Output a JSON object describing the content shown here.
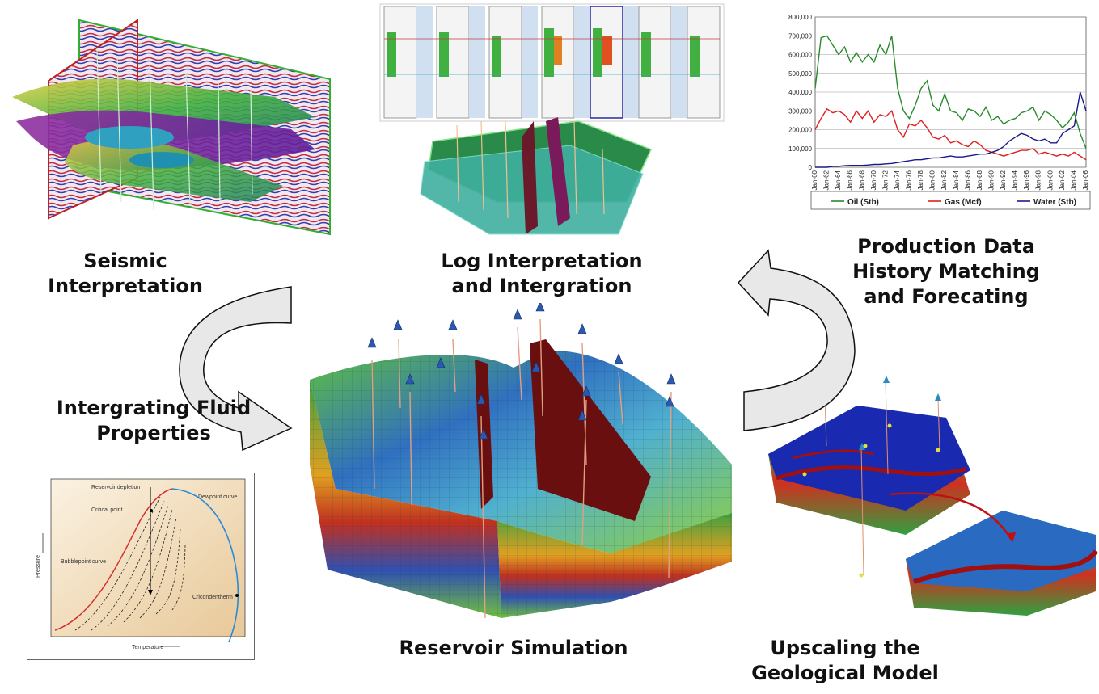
{
  "labels": {
    "seismic": [
      "Seismic",
      "Interpretation"
    ],
    "log": [
      "Log Interpretation",
      "and Intergration"
    ],
    "production": [
      "Production Data",
      "History Matching",
      "and Forecating"
    ],
    "fluid": [
      "Intergrating Fluid",
      "Properties"
    ],
    "reservoir": [
      "Reservoir Simulation"
    ],
    "upscaling": [
      "Upscaling the",
      "Geological Model"
    ]
  },
  "colors": {
    "oil": "#2a8a2a",
    "gas": "#e02020",
    "water": "#1a1a8a",
    "bubblepoint": "#d43030",
    "dewpoint": "#2a8ad4",
    "arrow_fill": "#e8e8e8"
  },
  "chart_data": {
    "type": "line",
    "title": "",
    "xlabel": "",
    "ylabel": "",
    "ylim": [
      0,
      800000
    ],
    "yticks": [
      "0",
      "100,000",
      "200,000",
      "300,000",
      "400,000",
      "500,000",
      "600,000",
      "700,000",
      "800,000"
    ],
    "xticks": [
      "Jan-60",
      "Jan-62",
      "Jan-64",
      "Jan-66",
      "Jan-68",
      "Jan-70",
      "Jan-72",
      "Jan-74",
      "Jan-76",
      "Jan-78",
      "Jan-80",
      "Jan-82",
      "Jan-84",
      "Jan-86",
      "Jan-88",
      "Jan-90",
      "Jan-92",
      "Jan-94",
      "Jan-96",
      "Jan-98",
      "Jan-00",
      "Jan-02",
      "Jan-04",
      "Jan-06"
    ],
    "x_years": [
      1960,
      1961,
      1962,
      1963,
      1964,
      1965,
      1966,
      1967,
      1968,
      1969,
      1970,
      1971,
      1972,
      1973,
      1974,
      1975,
      1976,
      1977,
      1978,
      1979,
      1980,
      1981,
      1982,
      1983,
      1984,
      1985,
      1986,
      1987,
      1988,
      1989,
      1990,
      1991,
      1992,
      1993,
      1994,
      1995,
      1996,
      1997,
      1998,
      1999,
      2000,
      2001,
      2002,
      2003,
      2004,
      2005,
      2006
    ],
    "series": [
      {
        "name": "Oil (Stb)",
        "values": [
          420000,
          690000,
          700000,
          650000,
          600000,
          640000,
          560000,
          610000,
          560000,
          600000,
          560000,
          650000,
          600000,
          700000,
          420000,
          300000,
          260000,
          330000,
          420000,
          460000,
          330000,
          300000,
          390000,
          300000,
          290000,
          250000,
          310000,
          300000,
          270000,
          320000,
          250000,
          270000,
          230000,
          250000,
          260000,
          290000,
          300000,
          320000,
          250000,
          300000,
          280000,
          250000,
          210000,
          240000,
          290000,
          180000,
          100000
        ]
      },
      {
        "name": "Gas (Mcf)",
        "values": [
          200000,
          260000,
          310000,
          290000,
          300000,
          280000,
          240000,
          300000,
          260000,
          300000,
          240000,
          280000,
          270000,
          300000,
          200000,
          160000,
          230000,
          220000,
          250000,
          210000,
          160000,
          150000,
          170000,
          130000,
          140000,
          120000,
          110000,
          140000,
          120000,
          90000,
          80000,
          70000,
          60000,
          70000,
          80000,
          90000,
          90000,
          100000,
          70000,
          80000,
          70000,
          60000,
          70000,
          60000,
          80000,
          60000,
          40000
        ]
      },
      {
        "name": "Water (Stb)",
        "values": [
          0,
          0,
          0,
          5000,
          5000,
          8000,
          10000,
          10000,
          10000,
          12000,
          15000,
          15000,
          18000,
          20000,
          25000,
          30000,
          35000,
          40000,
          40000,
          45000,
          50000,
          50000,
          55000,
          60000,
          55000,
          55000,
          60000,
          65000,
          70000,
          70000,
          80000,
          90000,
          110000,
          140000,
          160000,
          180000,
          170000,
          150000,
          140000,
          150000,
          130000,
          130000,
          180000,
          200000,
          220000,
          400000,
          300000
        ]
      }
    ],
    "legend": "bottom"
  },
  "phase_diagram": {
    "labels": {
      "reservoir_depletion": "Reservoir depletion",
      "critical_point": "Critical point",
      "dewpoint_curve": "Dewpoint curve",
      "bubblepoint_curve": "Bubblepoint curve",
      "cricondentherm": "Cricondentherm",
      "pressure": "Pressure",
      "temperature": "Temperature"
    }
  }
}
